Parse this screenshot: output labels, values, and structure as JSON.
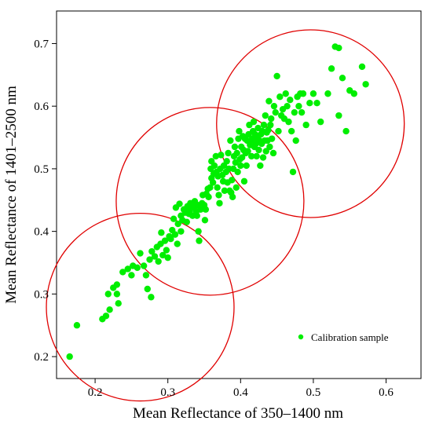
{
  "chart_data": {
    "type": "scatter",
    "xlabel": "Mean Reflectance of 350–1400 nm",
    "ylabel": "Mean Reflectance of 1401–2500 nm",
    "xlim": [
      0.147,
      0.648
    ],
    "ylim": [
      0.165,
      0.752
    ],
    "x_ticks": [
      0.2,
      0.3,
      0.4,
      0.5,
      0.6
    ],
    "y_ticks": [
      0.2,
      0.3,
      0.4,
      0.5,
      0.6,
      0.7
    ],
    "x_tick_labels": [
      "0.2",
      "0.3",
      "0.4",
      "0.5",
      "0.6"
    ],
    "y_tick_labels": [
      "0.2",
      "0.3",
      "0.4",
      "0.5",
      "0.6",
      "0.7"
    ],
    "grid": false,
    "legend_position": "bottom-right",
    "point_color": "#00ee00",
    "circle_color": "#e00000",
    "series": [
      {
        "name": "Calibration sample",
        "points": [
          [
            0.165,
            0.2
          ],
          [
            0.175,
            0.25
          ],
          [
            0.21,
            0.26
          ],
          [
            0.215,
            0.265
          ],
          [
            0.22,
            0.275
          ],
          [
            0.218,
            0.3
          ],
          [
            0.225,
            0.31
          ],
          [
            0.23,
            0.3
          ],
          [
            0.232,
            0.285
          ],
          [
            0.23,
            0.315
          ],
          [
            0.238,
            0.335
          ],
          [
            0.245,
            0.34
          ],
          [
            0.25,
            0.33
          ],
          [
            0.252,
            0.345
          ],
          [
            0.258,
            0.342
          ],
          [
            0.262,
            0.365
          ],
          [
            0.267,
            0.345
          ],
          [
            0.27,
            0.33
          ],
          [
            0.272,
            0.308
          ],
          [
            0.277,
            0.295
          ],
          [
            0.275,
            0.355
          ],
          [
            0.278,
            0.368
          ],
          [
            0.282,
            0.36
          ],
          [
            0.285,
            0.375
          ],
          [
            0.287,
            0.352
          ],
          [
            0.29,
            0.38
          ],
          [
            0.291,
            0.398
          ],
          [
            0.293,
            0.362
          ],
          [
            0.296,
            0.385
          ],
          [
            0.298,
            0.37
          ],
          [
            0.3,
            0.358
          ],
          [
            0.302,
            0.392
          ],
          [
            0.304,
            0.388
          ],
          [
            0.306,
            0.402
          ],
          [
            0.308,
            0.42
          ],
          [
            0.31,
            0.395
          ],
          [
            0.311,
            0.438
          ],
          [
            0.313,
            0.38
          ],
          [
            0.314,
            0.412
          ],
          [
            0.316,
            0.444
          ],
          [
            0.318,
            0.4
          ],
          [
            0.318,
            0.425
          ],
          [
            0.32,
            0.418
          ],
          [
            0.322,
            0.435
          ],
          [
            0.324,
            0.43
          ],
          [
            0.326,
            0.415
          ],
          [
            0.327,
            0.44
          ],
          [
            0.329,
            0.428
          ],
          [
            0.33,
            0.432
          ],
          [
            0.331,
            0.445
          ],
          [
            0.333,
            0.438
          ],
          [
            0.334,
            0.425
          ],
          [
            0.336,
            0.441
          ],
          [
            0.337,
            0.448
          ],
          [
            0.339,
            0.432
          ],
          [
            0.34,
            0.425
          ],
          [
            0.341,
            0.442
          ],
          [
            0.342,
            0.4
          ],
          [
            0.343,
            0.385
          ],
          [
            0.345,
            0.435
          ],
          [
            0.347,
            0.445
          ],
          [
            0.348,
            0.458
          ],
          [
            0.35,
            0.442
          ],
          [
            0.351,
            0.418
          ],
          [
            0.352,
            0.435
          ],
          [
            0.353,
            0.46
          ],
          [
            0.355,
            0.468
          ],
          [
            0.356,
            0.455
          ],
          [
            0.358,
            0.47
          ],
          [
            0.359,
            0.5
          ],
          [
            0.36,
            0.485
          ],
          [
            0.36,
            0.512
          ],
          [
            0.362,
            0.478
          ],
          [
            0.363,
            0.492
          ],
          [
            0.364,
            0.505
          ],
          [
            0.366,
            0.52
          ],
          [
            0.367,
            0.495
          ],
          [
            0.368,
            0.47
          ],
          [
            0.369,
            0.488
          ],
          [
            0.37,
            0.458
          ],
          [
            0.371,
            0.445
          ],
          [
            0.372,
            0.5
          ],
          [
            0.373,
            0.522
          ],
          [
            0.375,
            0.49
          ],
          [
            0.376,
            0.48
          ],
          [
            0.377,
            0.505
          ],
          [
            0.378,
            0.465
          ],
          [
            0.38,
            0.495
          ],
          [
            0.381,
            0.512
          ],
          [
            0.382,
            0.478
          ],
          [
            0.383,
            0.525
          ],
          [
            0.384,
            0.5
          ],
          [
            0.385,
            0.465
          ],
          [
            0.386,
            0.545
          ],
          [
            0.387,
            0.462
          ],
          [
            0.388,
            0.482
          ],
          [
            0.389,
            0.455
          ],
          [
            0.39,
            0.5
          ],
          [
            0.391,
            0.52
          ],
          [
            0.392,
            0.535
          ],
          [
            0.393,
            0.51
          ],
          [
            0.394,
            0.47
          ],
          [
            0.395,
            0.525
          ],
          [
            0.396,
            0.495
          ],
          [
            0.397,
            0.548
          ],
          [
            0.398,
            0.56
          ],
          [
            0.399,
            0.515
          ],
          [
            0.4,
            0.505
          ],
          [
            0.401,
            0.535
          ],
          [
            0.402,
            0.518
          ],
          [
            0.403,
            0.552
          ],
          [
            0.404,
            0.53
          ],
          [
            0.405,
            0.48
          ],
          [
            0.406,
            0.548
          ],
          [
            0.407,
            0.525
          ],
          [
            0.408,
            0.505
          ],
          [
            0.409,
            0.545
          ],
          [
            0.41,
            0.528
          ],
          [
            0.411,
            0.555
          ],
          [
            0.412,
            0.57
          ],
          [
            0.413,
            0.538
          ],
          [
            0.414,
            0.545
          ],
          [
            0.415,
            0.52
          ],
          [
            0.416,
            0.548
          ],
          [
            0.417,
            0.56
          ],
          [
            0.418,
            0.575
          ],
          [
            0.419,
            0.535
          ],
          [
            0.42,
            0.555
          ],
          [
            0.421,
            0.54
          ],
          [
            0.422,
            0.52
          ],
          [
            0.423,
            0.548
          ],
          [
            0.424,
            0.565
          ],
          [
            0.425,
            0.53
          ],
          [
            0.426,
            0.545
          ],
          [
            0.427,
            0.505
          ],
          [
            0.428,
            0.555
          ],
          [
            0.429,
            0.54
          ],
          [
            0.43,
            0.56
          ],
          [
            0.431,
            0.518
          ],
          [
            0.432,
            0.57
          ],
          [
            0.433,
            0.545
          ],
          [
            0.434,
            0.585
          ],
          [
            0.435,
            0.528
          ],
          [
            0.436,
            0.558
          ],
          [
            0.437,
            0.545
          ],
          [
            0.438,
            0.562
          ],
          [
            0.439,
            0.608
          ],
          [
            0.44,
            0.535
          ],
          [
            0.441,
            0.57
          ],
          [
            0.442,
            0.58
          ],
          [
            0.443,
            0.548
          ],
          [
            0.445,
            0.525
          ],
          [
            0.446,
            0.6
          ],
          [
            0.448,
            0.59
          ],
          [
            0.45,
            0.648
          ],
          [
            0.452,
            0.56
          ],
          [
            0.454,
            0.615
          ],
          [
            0.456,
            0.585
          ],
          [
            0.458,
            0.595
          ],
          [
            0.46,
            0.58
          ],
          [
            0.462,
            0.62
          ],
          [
            0.464,
            0.6
          ],
          [
            0.466,
            0.575
          ],
          [
            0.468,
            0.61
          ],
          [
            0.47,
            0.56
          ],
          [
            0.472,
            0.495
          ],
          [
            0.474,
            0.59
          ],
          [
            0.476,
            0.545
          ],
          [
            0.478,
            0.615
          ],
          [
            0.48,
            0.6
          ],
          [
            0.482,
            0.62
          ],
          [
            0.484,
            0.59
          ],
          [
            0.486,
            0.62
          ],
          [
            0.49,
            0.57
          ],
          [
            0.495,
            0.605
          ],
          [
            0.5,
            0.62
          ],
          [
            0.505,
            0.605
          ],
          [
            0.51,
            0.575
          ],
          [
            0.52,
            0.62
          ],
          [
            0.525,
            0.66
          ],
          [
            0.53,
            0.695
          ],
          [
            0.535,
            0.585
          ],
          [
            0.535,
            0.693
          ],
          [
            0.54,
            0.645
          ],
          [
            0.545,
            0.56
          ],
          [
            0.55,
            0.625
          ],
          [
            0.556,
            0.62
          ],
          [
            0.567,
            0.663
          ],
          [
            0.572,
            0.635
          ]
        ]
      }
    ],
    "circles": [
      {
        "cx": 0.262,
        "cy": 0.279,
        "r": 0.129
      },
      {
        "cx": 0.358,
        "cy": 0.448,
        "r": 0.129
      },
      {
        "cx": 0.496,
        "cy": 0.572,
        "r": 0.129
      }
    ]
  }
}
